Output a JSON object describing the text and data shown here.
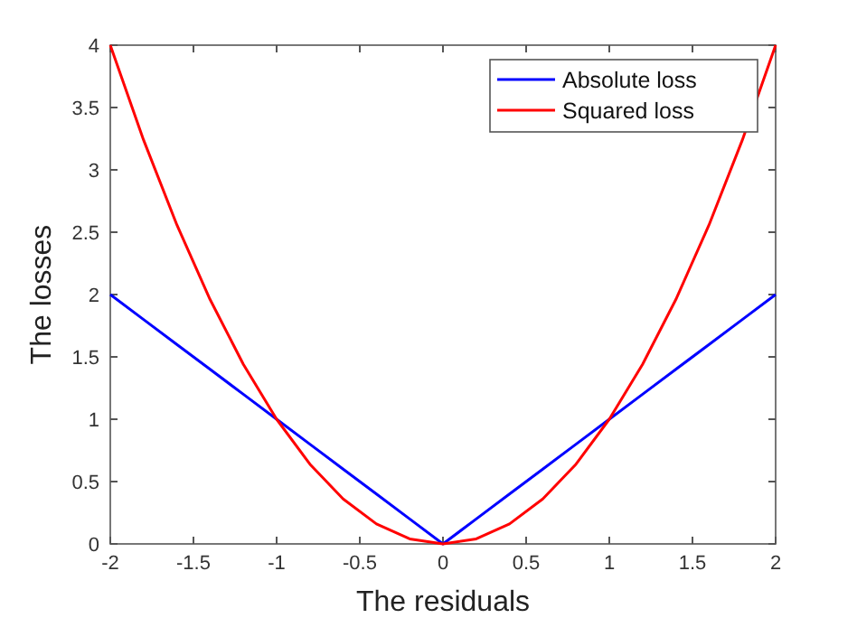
{
  "chart_data": {
    "type": "line",
    "xlabel": "The residuals",
    "ylabel": "The losses",
    "x": [
      -2,
      -1.8,
      -1.6,
      -1.4,
      -1.2,
      -1,
      -0.8,
      -0.6,
      -0.4,
      -0.2,
      0,
      0.2,
      0.4,
      0.6,
      0.8,
      1,
      1.2,
      1.4,
      1.6,
      1.8,
      2
    ],
    "series": [
      {
        "name": "Absolute loss",
        "color": "#0000ff",
        "values": [
          2,
          1.8,
          1.6,
          1.4,
          1.2,
          1,
          0.8,
          0.6,
          0.4,
          0.2,
          0,
          0.2,
          0.4,
          0.6,
          0.8,
          1,
          1.2,
          1.4,
          1.6,
          1.8,
          2
        ]
      },
      {
        "name": "Squared loss",
        "color": "#ff0000",
        "values": [
          4,
          3.24,
          2.56,
          1.96,
          1.44,
          1,
          0.64,
          0.36,
          0.16,
          0.04,
          0,
          0.04,
          0.16,
          0.36,
          0.64,
          1,
          1.44,
          1.96,
          2.56,
          3.24,
          4
        ]
      }
    ],
    "xlim": [
      -2,
      2
    ],
    "xticks": [
      -2,
      -1.5,
      -1,
      -0.5,
      0,
      0.5,
      1,
      1.5,
      2
    ],
    "ylim": [
      0,
      4
    ],
    "yticks": [
      0,
      0.5,
      1,
      1.5,
      2,
      2.5,
      3,
      3.5,
      4
    ],
    "grid": false,
    "legend": "top right",
    "marker": "none",
    "line_style": "solid"
  }
}
